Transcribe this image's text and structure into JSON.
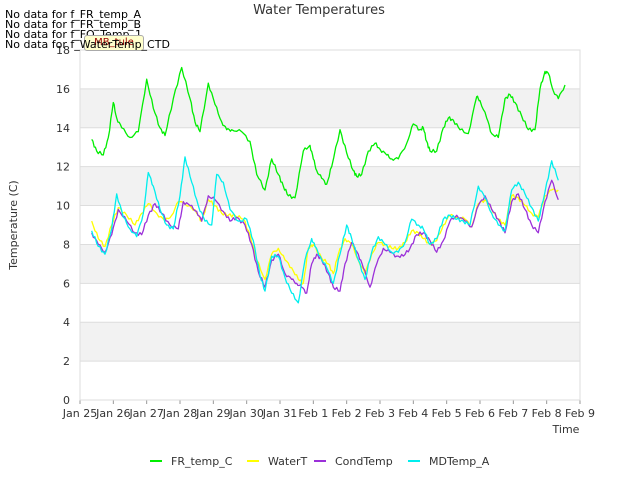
{
  "no_data_messages": [
    "No data for f_FR_temp_A",
    "No data for f_FR_temp_B",
    "No data for f_FO_Temp_1",
    "No data for f_WaterTemp_CTD"
  ],
  "tooltip_badge": "MB_tule",
  "colors": {
    "FR_temp_C": "#00ee00",
    "WaterT": "#ffff00",
    "CondTemp": "#9b30d9",
    "MDTemp_A": "#00eeee",
    "band": "#f2f2f2",
    "grid": "#dddddd",
    "axis": "#999999"
  },
  "chart_data": {
    "type": "line",
    "title": "Water Temperatures",
    "xlabel": "Time",
    "ylabel": "Temperature (C)",
    "ylim": [
      0,
      18
    ],
    "xlim": [
      0,
      15
    ],
    "grid": true,
    "legend_position": "bottom",
    "x_ticks": [
      "Jan 25",
      "Jan 26",
      "Jan 27",
      "Jan 28",
      "Jan 29",
      "Jan 30",
      "Jan 31",
      "Feb 1",
      "Feb 2",
      "Feb 3",
      "Feb 4",
      "Feb 5",
      "Feb 6",
      "Feb 7",
      "Feb 8",
      "Feb 9"
    ],
    "y_ticks": [
      0,
      2,
      4,
      6,
      8,
      10,
      12,
      14,
      16,
      18
    ],
    "series": [
      {
        "name": "FR_temp_C",
        "x": [
          0.35,
          0.5,
          0.7,
          0.85,
          1.0,
          1.1,
          1.25,
          1.5,
          1.75,
          2.0,
          2.2,
          2.4,
          2.55,
          2.8,
          3.05,
          3.3,
          3.45,
          3.6,
          3.85,
          4.05,
          4.25,
          4.4,
          4.55,
          4.85,
          5.1,
          5.3,
          5.55,
          5.75,
          5.95,
          6.1,
          6.25,
          6.45,
          6.7,
          6.9,
          7.0,
          7.1,
          7.25,
          7.4,
          7.55,
          7.8,
          8.0,
          8.2,
          8.3,
          8.45,
          8.65,
          8.85,
          9.0,
          9.2,
          9.35,
          9.55,
          9.8,
          10.0,
          10.2,
          10.3,
          10.4,
          10.5,
          10.7,
          10.9,
          11.05,
          11.2,
          11.4,
          11.65,
          11.9,
          12.0,
          12.2,
          12.35,
          12.55,
          12.75,
          12.9,
          13.05,
          13.25,
          13.45,
          13.65,
          13.8,
          13.95,
          14.05,
          14.2,
          14.35,
          14.55
        ],
        "values": [
          13.4,
          12.8,
          12.6,
          13.5,
          15.3,
          14.5,
          14.0,
          13.5,
          13.8,
          16.5,
          15.0,
          14.0,
          13.6,
          15.5,
          17.1,
          15.5,
          14.3,
          13.8,
          16.3,
          15.2,
          14.3,
          13.9,
          13.9,
          13.8,
          13.3,
          11.6,
          10.8,
          12.4,
          11.6,
          11.0,
          10.5,
          10.4,
          12.8,
          13.1,
          12.4,
          11.8,
          11.4,
          11.1,
          12.0,
          13.9,
          12.7,
          11.8,
          11.5,
          11.6,
          12.8,
          13.2,
          12.9,
          12.6,
          12.4,
          12.4,
          13.2,
          14.2,
          13.9,
          14.0,
          13.3,
          12.8,
          12.8,
          14.0,
          14.5,
          14.4,
          13.9,
          13.7,
          15.6,
          15.4,
          14.5,
          13.7,
          13.5,
          15.5,
          15.7,
          15.3,
          14.6,
          13.9,
          13.9,
          16.0,
          16.9,
          16.8,
          15.9,
          15.5,
          16.2
        ],
        "color": "#00ee00"
      },
      {
        "name": "WaterT",
        "x": [
          0.35,
          0.55,
          0.75,
          0.95,
          1.15,
          1.4,
          1.65,
          1.85,
          2.05,
          2.3,
          2.55,
          2.75,
          2.95,
          3.3,
          3.5,
          3.65,
          3.85,
          4.05,
          4.25,
          4.45,
          4.65,
          4.9,
          5.1,
          5.3,
          5.55,
          5.75,
          5.95,
          6.15,
          6.35,
          6.55,
          6.7,
          6.85,
          7.0,
          7.25,
          7.45,
          7.6,
          7.75,
          7.95,
          8.15,
          8.35,
          8.55,
          8.75,
          8.95,
          9.15,
          9.35,
          9.55,
          9.75,
          9.95,
          10.15,
          10.3,
          10.5,
          10.7,
          10.9,
          11.1,
          11.3,
          11.55,
          11.75,
          11.95,
          12.15,
          12.35,
          12.55,
          12.75,
          12.95,
          13.15,
          13.35,
          13.55,
          13.75,
          13.95,
          14.15,
          14.35
        ],
        "values": [
          9.2,
          8.3,
          7.9,
          9.0,
          9.9,
          9.5,
          9.0,
          9.6,
          10.1,
          9.6,
          9.2,
          9.5,
          10.2,
          10.0,
          9.6,
          9.2,
          10.3,
          10.0,
          9.6,
          9.5,
          9.5,
          9.3,
          8.5,
          7.2,
          6.2,
          7.5,
          7.8,
          7.2,
          6.8,
          6.2,
          6.0,
          7.8,
          8.0,
          7.3,
          7.0,
          6.5,
          7.5,
          8.3,
          8.0,
          7.2,
          6.5,
          7.5,
          8.1,
          8.0,
          7.8,
          7.8,
          8.1,
          8.7,
          8.6,
          8.3,
          8.0,
          8.2,
          9.0,
          9.5,
          9.4,
          9.3,
          8.9,
          10.1,
          10.3,
          9.8,
          9.3,
          9.0,
          10.5,
          10.4,
          10.0,
          9.6,
          9.4,
          10.5,
          10.8,
          10.8
        ],
        "color": "#ffff00"
      },
      {
        "name": "CondTemp",
        "x": [
          0.35,
          0.55,
          0.75,
          0.95,
          1.15,
          1.4,
          1.65,
          1.85,
          2.05,
          2.25,
          2.45,
          2.7,
          2.95,
          3.1,
          3.3,
          3.5,
          3.65,
          3.85,
          4.05,
          4.3,
          4.5,
          4.7,
          4.95,
          5.15,
          5.35,
          5.55,
          5.75,
          5.95,
          6.15,
          6.35,
          6.5,
          6.65,
          6.8,
          6.95,
          7.1,
          7.25,
          7.45,
          7.6,
          7.8,
          7.95,
          8.15,
          8.35,
          8.5,
          8.7,
          8.9,
          9.1,
          9.3,
          9.5,
          9.7,
          9.9,
          10.1,
          10.3,
          10.5,
          10.7,
          10.9,
          11.1,
          11.3,
          11.55,
          11.75,
          11.95,
          12.15,
          12.35,
          12.55,
          12.75,
          12.95,
          13.15,
          13.35,
          13.55,
          13.75,
          13.95,
          14.15,
          14.35
        ],
        "values": [
          8.6,
          8.0,
          7.6,
          8.5,
          9.8,
          9.2,
          8.6,
          8.5,
          9.5,
          10.1,
          9.6,
          9.0,
          8.8,
          10.2,
          10.0,
          9.7,
          9.2,
          10.5,
          10.3,
          9.7,
          9.2,
          9.4,
          9.0,
          8.0,
          6.6,
          5.8,
          7.2,
          7.5,
          6.5,
          6.2,
          6.0,
          5.8,
          5.5,
          7.0,
          7.5,
          7.2,
          6.5,
          5.8,
          5.6,
          7.0,
          8.1,
          7.5,
          6.8,
          5.8,
          7.0,
          7.8,
          7.6,
          7.4,
          7.4,
          7.8,
          8.5,
          8.6,
          8.2,
          7.6,
          8.2,
          9.2,
          9.5,
          9.2,
          8.9,
          10.0,
          10.5,
          9.8,
          9.3,
          8.6,
          10.2,
          10.6,
          9.8,
          9.0,
          8.6,
          10.2,
          11.3,
          10.3
        ],
        "color": "#9b30d9"
      },
      {
        "name": "MDTemp_A",
        "x": [
          0.35,
          0.55,
          0.75,
          0.95,
          1.1,
          1.3,
          1.5,
          1.7,
          1.9,
          2.05,
          2.2,
          2.4,
          2.6,
          2.8,
          3.0,
          3.15,
          3.35,
          3.55,
          3.75,
          3.95,
          4.1,
          4.3,
          4.5,
          4.75,
          5.0,
          5.2,
          5.4,
          5.55,
          5.75,
          5.95,
          6.15,
          6.35,
          6.55,
          6.75,
          6.95,
          7.05,
          7.2,
          7.4,
          7.6,
          7.8,
          8.0,
          8.15,
          8.35,
          8.55,
          8.75,
          8.95,
          9.15,
          9.35,
          9.55,
          9.75,
          9.95,
          10.15,
          10.3,
          10.5,
          10.7,
          10.9,
          11.1,
          11.3,
          11.5,
          11.7,
          11.95,
          12.15,
          12.35,
          12.55,
          12.75,
          12.95,
          13.15,
          13.35,
          13.55,
          13.75,
          13.95,
          14.15,
          14.35
        ],
        "values": [
          8.7,
          7.9,
          7.5,
          8.8,
          10.6,
          9.4,
          8.8,
          8.4,
          9.6,
          11.7,
          11.0,
          9.8,
          9.0,
          8.8,
          10.5,
          12.5,
          11.2,
          10.0,
          9.2,
          9.0,
          11.6,
          11.2,
          9.8,
          9.2,
          9.3,
          8.2,
          6.4,
          5.6,
          7.4,
          7.4,
          6.3,
          5.5,
          5.0,
          7.2,
          8.3,
          7.9,
          7.4,
          6.8,
          6.0,
          7.5,
          9.0,
          8.3,
          7.2,
          6.2,
          7.6,
          8.4,
          8.0,
          7.6,
          7.6,
          8.1,
          9.3,
          9.0,
          8.8,
          8.0,
          8.3,
          9.3,
          9.5,
          9.3,
          9.2,
          9.0,
          11.0,
          10.4,
          9.6,
          9.0,
          8.7,
          10.8,
          11.2,
          10.6,
          9.9,
          9.2,
          10.7,
          12.3,
          11.3
        ],
        "color": "#00eeee"
      }
    ]
  }
}
